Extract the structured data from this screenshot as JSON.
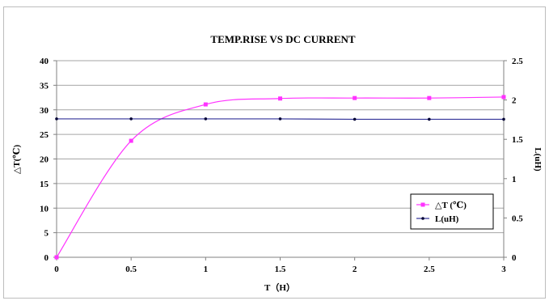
{
  "chart_data": {
    "type": "line",
    "title": "TEMP.RISE VS DC CURRENT",
    "xlabel": "T（H）",
    "ylabel_left": "△T(℃)",
    "ylabel_right": "L(uH)",
    "x": [
      0,
      0.5,
      1,
      1.5,
      2,
      2.5,
      3
    ],
    "x_tick_labels": [
      "0",
      "0.5",
      "1",
      "1.5",
      "2",
      "2.5",
      "3"
    ],
    "xlim": [
      0,
      3
    ],
    "ylim_left": [
      0,
      40
    ],
    "y_left_tick_labels": [
      "0",
      "5",
      "10",
      "15",
      "20",
      "25",
      "30",
      "35",
      "40"
    ],
    "ylim_right": [
      0,
      2.5
    ],
    "y_right_tick_labels": [
      "0",
      "0.5",
      "1",
      "1.5",
      "2",
      "2.5"
    ],
    "grid": "horizontal",
    "legend_position": "bottom-right",
    "series": [
      {
        "name": "△T (℃)",
        "axis": "left",
        "color": "#ff33ff",
        "marker": "square",
        "smooth": true,
        "values": [
          0,
          23.7,
          31.1,
          32.3,
          32.4,
          32.4,
          32.6
        ]
      },
      {
        "name": "L(uH)",
        "axis": "right",
        "color": "#333399",
        "marker": "dot",
        "smooth": false,
        "values": [
          1.76,
          1.76,
          1.76,
          1.76,
          1.755,
          1.755,
          1.755
        ]
      }
    ]
  }
}
